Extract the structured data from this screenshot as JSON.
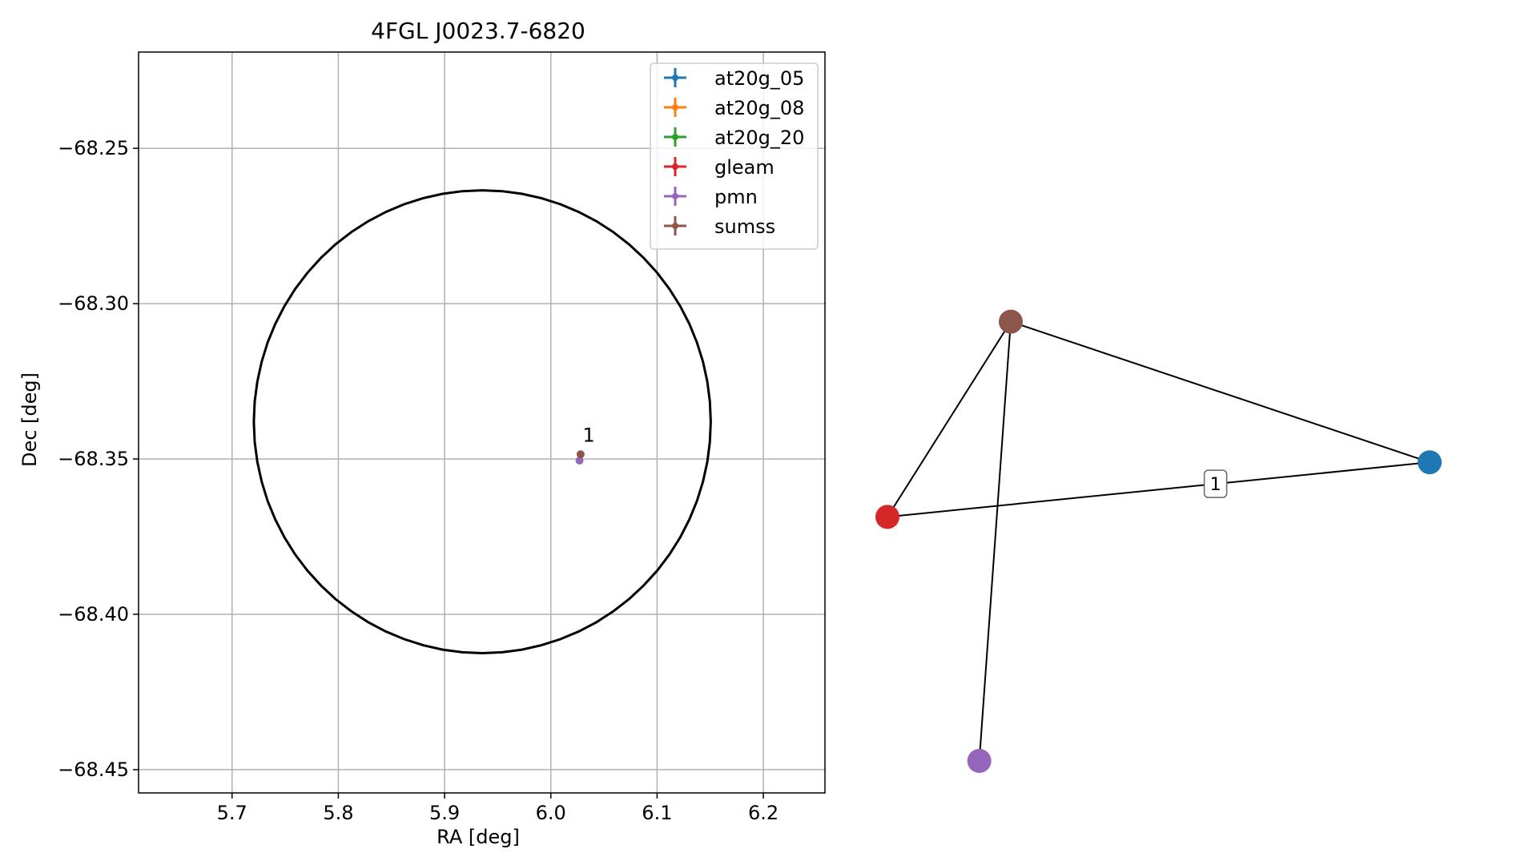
{
  "chart_data": [
    {
      "type": "scatter",
      "title": "4FGL J0023.7-6820",
      "xlabel": "RA [deg]",
      "ylabel": "Dec [deg]",
      "xlim": [
        5.612,
        6.258
      ],
      "ylim": [
        -68.4575,
        -68.219
      ],
      "xticks": [
        5.7,
        5.8,
        5.9,
        6.0,
        6.1,
        6.2
      ],
      "xtick_labels": [
        "5.7",
        "5.8",
        "5.9",
        "6.0",
        "6.1",
        "6.2"
      ],
      "yticks": [
        -68.25,
        -68.3,
        -68.35,
        -68.4,
        -68.45
      ],
      "ytick_labels": [
        "−68.25",
        "−68.30",
        "−68.35",
        "−68.40",
        "−68.45"
      ],
      "grid": true,
      "legend_position": "top-right",
      "legend": [
        {
          "name": "at20g_05",
          "color": "#1f77b4"
        },
        {
          "name": "at20g_08",
          "color": "#ff7f0e"
        },
        {
          "name": "at20g_20",
          "color": "#2ca02c"
        },
        {
          "name": "gleam",
          "color": "#d62728"
        },
        {
          "name": "pmn",
          "color": "#9467bd"
        },
        {
          "name": "sumss",
          "color": "#8c564b"
        }
      ],
      "error_ellipse": {
        "ra_center": 5.9355,
        "dec_center": -68.338,
        "ra_semi_axis": 0.215,
        "dec_semi_axis": 0.0745,
        "color": "#000000"
      },
      "points": [
        {
          "series": "pmn",
          "ra": 6.027,
          "dec": -68.3505,
          "color": "#9467bd"
        },
        {
          "series": "sumss",
          "ra": 6.028,
          "dec": -68.3485,
          "color": "#8c564b"
        }
      ],
      "annotations": [
        {
          "text": "1",
          "ra": 6.03,
          "dec": -68.3445
        }
      ]
    },
    {
      "type": "network",
      "nodes": [
        {
          "id": "sumss",
          "color": "#8c564b",
          "x": 0.2274,
          "y": 0.7779
        },
        {
          "id": "at20g_05",
          "color": "#1f77b4",
          "x": 1.0,
          "y": 0.5288
        },
        {
          "id": "gleam",
          "color": "#d62728",
          "x": 0.0,
          "y": 0.4321
        },
        {
          "id": "pmn",
          "color": "#9467bd",
          "x": 0.1694,
          "y": 0.0
        }
      ],
      "edges": [
        {
          "source": "sumss",
          "target": "at20g_05",
          "label": ""
        },
        {
          "source": "sumss",
          "target": "gleam",
          "label": ""
        },
        {
          "source": "sumss",
          "target": "pmn",
          "label": ""
        },
        {
          "source": "gleam",
          "target": "at20g_05",
          "label": "1"
        }
      ]
    }
  ]
}
